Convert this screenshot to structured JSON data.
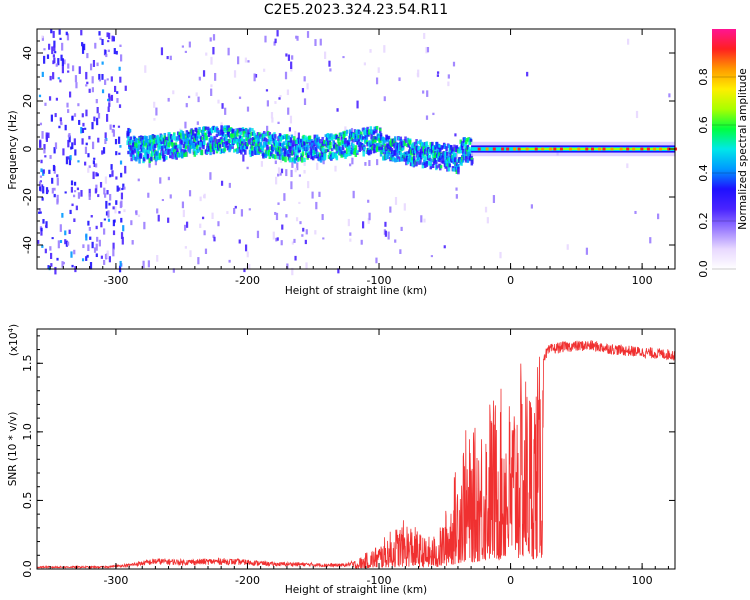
{
  "title": "C2E5.2023.324.23.54.R11",
  "spectrogram": {
    "type": "heatmap",
    "xlabel": "Height of straight line (km)",
    "ylabel": "Frequency (Hz)",
    "xlim": [
      -360,
      125
    ],
    "ylim": [
      -50,
      50
    ],
    "xticks": [
      -300,
      -200,
      -100,
      0,
      100
    ],
    "yticks": [
      -40,
      -20,
      0,
      20,
      40
    ],
    "colorbar": {
      "label": "Normalized spectral amplitude",
      "range": [
        0,
        1
      ],
      "ticks": [
        "0.0",
        "0.2",
        "0.4",
        "0.6",
        "0.8"
      ],
      "colors": [
        "#ffffff",
        "#e8d8ff",
        "#9a7cff",
        "#4a24ff",
        "#1e10ff",
        "#0099ff",
        "#00e8e8",
        "#00ff40",
        "#aaff00",
        "#ffee00",
        "#ff9900",
        "#ff2020",
        "#ff1493"
      ]
    }
  },
  "snr": {
    "type": "line",
    "xlabel": "Height of straight line (km)",
    "ylabel": "SNR (10 * v/v)",
    "exponent_label": "(x10",
    "exponent_power": "4",
    "exponent_close": ")",
    "xlim": [
      -360,
      125
    ],
    "ylim": [
      0,
      1.75
    ],
    "xticks": [
      -300,
      -200,
      -100,
      0,
      100
    ],
    "yticks": [
      "0.0",
      "0.5",
      "1.0",
      "1.5"
    ],
    "color": "#f03030",
    "envelope": [
      [
        -360,
        0.02
      ],
      [
        -310,
        0.02
      ],
      [
        -290,
        0.04
      ],
      [
        -270,
        0.08
      ],
      [
        -250,
        0.07
      ],
      [
        -220,
        0.08
      ],
      [
        -200,
        0.07
      ],
      [
        -180,
        0.05
      ],
      [
        -160,
        0.05
      ],
      [
        -140,
        0.04
      ],
      [
        -125,
        0.04
      ],
      [
        -115,
        0.08
      ],
      [
        -100,
        0.18
      ],
      [
        -90,
        0.28
      ],
      [
        -80,
        0.35
      ],
      [
        -75,
        0.32
      ],
      [
        -65,
        0.22
      ],
      [
        -55,
        0.25
      ],
      [
        -50,
        0.4
      ],
      [
        -45,
        0.55
      ],
      [
        -40,
        0.8
      ],
      [
        -35,
        1.0
      ],
      [
        -30,
        0.9
      ],
      [
        -25,
        1.05
      ],
      [
        -20,
        1.1
      ],
      [
        -15,
        1.25
      ],
      [
        -10,
        1.2
      ],
      [
        -5,
        1.3
      ],
      [
        0,
        1.2
      ],
      [
        5,
        1.4
      ],
      [
        10,
        1.45
      ],
      [
        15,
        1.35
      ],
      [
        20,
        1.45
      ],
      [
        25,
        1.55
      ],
      [
        30,
        1.6
      ],
      [
        40,
        1.62
      ],
      [
        60,
        1.63
      ],
      [
        80,
        1.6
      ],
      [
        100,
        1.58
      ],
      [
        125,
        1.56
      ]
    ]
  }
}
